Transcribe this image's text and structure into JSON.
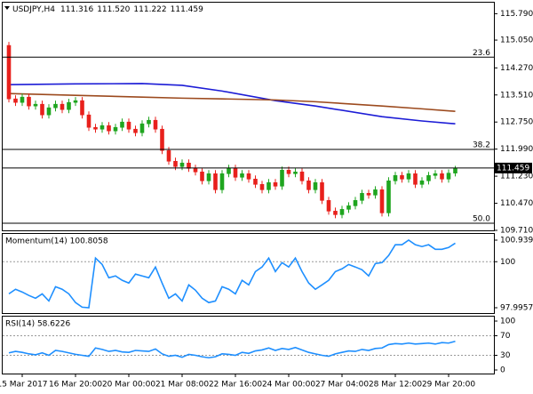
{
  "header": {
    "symbol": "USDJPY,H4",
    "ohlc": [
      "111.316",
      "111.520",
      "111.222",
      "111.459"
    ]
  },
  "chart_data": [
    {
      "type": "candlestick",
      "categories": [
        null,
        null,
        "15 Mar 2017",
        null,
        null,
        null,
        null,
        null,
        null,
        null,
        "16 Mar 20:00",
        null,
        null,
        null,
        null,
        null,
        null,
        null,
        "20 Mar 00:00",
        null,
        null,
        null,
        null,
        null,
        null,
        null,
        "21 Mar 08:00",
        null,
        null,
        null,
        null,
        null,
        null,
        null,
        "22 Mar 16:00",
        null,
        null,
        null,
        null,
        null,
        null,
        null,
        "24 Mar 00:00",
        null,
        null,
        null,
        null,
        null,
        null,
        null,
        "27 Mar 04:00",
        null,
        null,
        null,
        null,
        null,
        null,
        null,
        "28 Mar 12:00",
        null,
        null,
        null,
        null,
        null,
        null,
        null,
        "29 Mar 20:00",
        null
      ],
      "open": [
        114.9,
        113.4,
        113.3,
        113.45,
        113.2,
        113.25,
        112.95,
        113.15,
        113.25,
        113.1,
        113.3,
        113.35,
        112.95,
        112.6,
        112.55,
        112.65,
        112.5,
        112.6,
        112.75,
        112.55,
        112.45,
        112.7,
        112.8,
        112.55,
        111.95,
        111.65,
        111.5,
        111.6,
        111.45,
        111.35,
        111.1,
        111.3,
        110.85,
        111.3,
        111.45,
        111.2,
        111.3,
        111.15,
        111.0,
        110.85,
        111.05,
        110.95,
        111.4,
        111.3,
        111.35,
        111.1,
        110.85,
        111.05,
        110.55,
        110.25,
        110.15,
        110.3,
        110.4,
        110.55,
        110.75,
        110.7,
        110.85,
        110.2,
        111.1,
        111.25,
        111.15,
        111.3,
        111.0,
        111.1,
        111.25,
        111.3,
        111.15,
        111.316
      ],
      "high": [
        115.0,
        113.5,
        113.55,
        113.55,
        113.35,
        113.35,
        113.25,
        113.35,
        113.35,
        113.4,
        113.45,
        113.45,
        113.05,
        112.7,
        112.75,
        112.75,
        112.7,
        112.85,
        112.85,
        112.65,
        112.8,
        112.9,
        112.9,
        112.65,
        112.05,
        111.75,
        111.7,
        111.7,
        111.55,
        111.45,
        111.4,
        111.4,
        111.4,
        111.55,
        111.55,
        111.4,
        111.4,
        111.25,
        111.1,
        111.15,
        111.15,
        111.5,
        111.5,
        111.45,
        111.45,
        111.2,
        111.15,
        111.15,
        110.65,
        110.35,
        110.4,
        110.5,
        110.65,
        110.85,
        110.85,
        110.95,
        110.95,
        111.2,
        111.35,
        111.35,
        111.4,
        111.4,
        111.2,
        111.35,
        111.4,
        111.4,
        111.42,
        111.52
      ],
      "low": [
        113.3,
        113.2,
        113.2,
        113.1,
        113.1,
        112.85,
        112.85,
        113.05,
        113.0,
        113.0,
        113.2,
        112.85,
        112.5,
        112.45,
        112.45,
        112.4,
        112.4,
        112.5,
        112.45,
        112.35,
        112.35,
        112.6,
        112.45,
        111.85,
        111.55,
        111.4,
        111.4,
        111.35,
        111.25,
        111.0,
        111.0,
        110.75,
        110.75,
        111.2,
        111.1,
        111.1,
        111.05,
        110.9,
        110.75,
        110.75,
        110.85,
        110.85,
        111.2,
        111.2,
        111.0,
        110.75,
        110.75,
        110.45,
        110.15,
        110.05,
        110.05,
        110.2,
        110.3,
        110.45,
        110.6,
        110.6,
        110.1,
        110.1,
        111.0,
        111.05,
        111.05,
        110.9,
        110.9,
        111.0,
        111.15,
        111.05,
        111.05,
        111.222
      ],
      "close": [
        113.4,
        113.3,
        113.45,
        113.2,
        113.25,
        112.95,
        113.15,
        113.25,
        113.1,
        113.3,
        113.35,
        112.95,
        112.6,
        112.55,
        112.65,
        112.5,
        112.6,
        112.75,
        112.55,
        112.45,
        112.7,
        112.8,
        112.55,
        111.95,
        111.65,
        111.5,
        111.6,
        111.45,
        111.35,
        111.1,
        111.3,
        110.85,
        111.3,
        111.45,
        111.2,
        111.3,
        111.15,
        111.0,
        110.85,
        111.05,
        110.95,
        111.4,
        111.3,
        111.35,
        111.1,
        110.85,
        111.05,
        110.55,
        110.25,
        110.15,
        110.3,
        110.4,
        110.55,
        110.75,
        110.7,
        110.85,
        110.2,
        111.1,
        111.25,
        111.15,
        111.3,
        111.0,
        111.1,
        111.25,
        111.3,
        111.15,
        111.316,
        111.459
      ],
      "up_color": "#1fa51f",
      "down_color": "#e8201c",
      "lines": [
        {
          "color": "#1c1cd6",
          "x": [
            0,
            10,
            20,
            26,
            32,
            40,
            46,
            56,
            62,
            67
          ],
          "values": [
            113.8,
            113.82,
            113.83,
            113.78,
            113.62,
            113.35,
            113.2,
            112.9,
            112.78,
            112.7
          ]
        },
        {
          "color": "#9c4a1e",
          "x": [
            0,
            10,
            20,
            26,
            32,
            40,
            46,
            56,
            62,
            67
          ],
          "values": [
            113.55,
            113.5,
            113.45,
            113.42,
            113.4,
            113.37,
            113.32,
            113.2,
            113.12,
            113.05
          ]
        }
      ],
      "levels": [
        {
          "label": "23.6",
          "value": 114.57
        },
        {
          "label": "38.2",
          "value": 111.98
        },
        {
          "label": "50.0",
          "value": 109.91
        }
      ],
      "level_color": "#000000",
      "ylim": [
        109.71,
        116.1
      ],
      "yticks": [
        {
          "value": 115.79,
          "label": "115.790"
        },
        {
          "value": 115.05,
          "label": "115.050"
        },
        {
          "value": 114.27,
          "label": "114.270"
        },
        {
          "value": 113.51,
          "label": "113.510"
        },
        {
          "value": 112.75,
          "label": "112.750"
        },
        {
          "value": 111.99,
          "label": "111.990"
        },
        {
          "value": 111.23,
          "label": "111.230"
        },
        {
          "value": 110.47,
          "label": "110.470"
        },
        {
          "value": 109.71,
          "label": "109.710"
        }
      ]
    },
    {
      "type": "line",
      "title": "Momentum(14) 100.8058",
      "color": "#1e8fff",
      "values": [
        98.6,
        98.8,
        98.68,
        98.53,
        98.41,
        98.6,
        98.29,
        98.91,
        98.8,
        98.6,
        98.22,
        98.02,
        97.9957,
        100.16,
        99.88,
        99.3,
        99.38,
        99.19,
        99.07,
        99.46,
        99.38,
        99.3,
        99.77,
        99.07,
        98.41,
        98.6,
        98.29,
        98.99,
        98.76,
        98.41,
        98.22,
        98.29,
        98.91,
        98.8,
        98.6,
        99.19,
        98.99,
        99.57,
        99.77,
        100.16,
        99.57,
        99.96,
        99.77,
        100.16,
        99.57,
        99.07,
        98.8,
        98.99,
        99.19,
        99.57,
        99.69,
        99.88,
        99.77,
        99.65,
        99.38,
        99.92,
        99.96,
        100.27,
        100.74,
        100.74,
        100.9397,
        100.74,
        100.66,
        100.74,
        100.54,
        100.54,
        100.62,
        100.8058
      ],
      "ylim": [
        97.9957,
        100.9397
      ],
      "yticks": [
        100.9397,
        100,
        97.9957
      ],
      "reference_lines": [
        100
      ]
    },
    {
      "type": "line",
      "title": "RSI(14) 58.6226",
      "color": "#1e8fff",
      "values": [
        35,
        38,
        36,
        33,
        31,
        35,
        30,
        40,
        38,
        35,
        32,
        30,
        28,
        45,
        42,
        38,
        40,
        37,
        36,
        40,
        39,
        38,
        43,
        33,
        28,
        30,
        26,
        32,
        30,
        27,
        25,
        27,
        33,
        32,
        30,
        36,
        34,
        39,
        41,
        45,
        40,
        44,
        42,
        46,
        41,
        36,
        33,
        30,
        28,
        33,
        36,
        39,
        38,
        42,
        40,
        44,
        45,
        52,
        54,
        53,
        55,
        53,
        54,
        55,
        53,
        56,
        55,
        58.6226
      ],
      "ylim": [
        0,
        100
      ],
      "yticks": [
        100,
        70,
        30,
        0
      ],
      "reference_lines": [
        70,
        30
      ]
    }
  ]
}
